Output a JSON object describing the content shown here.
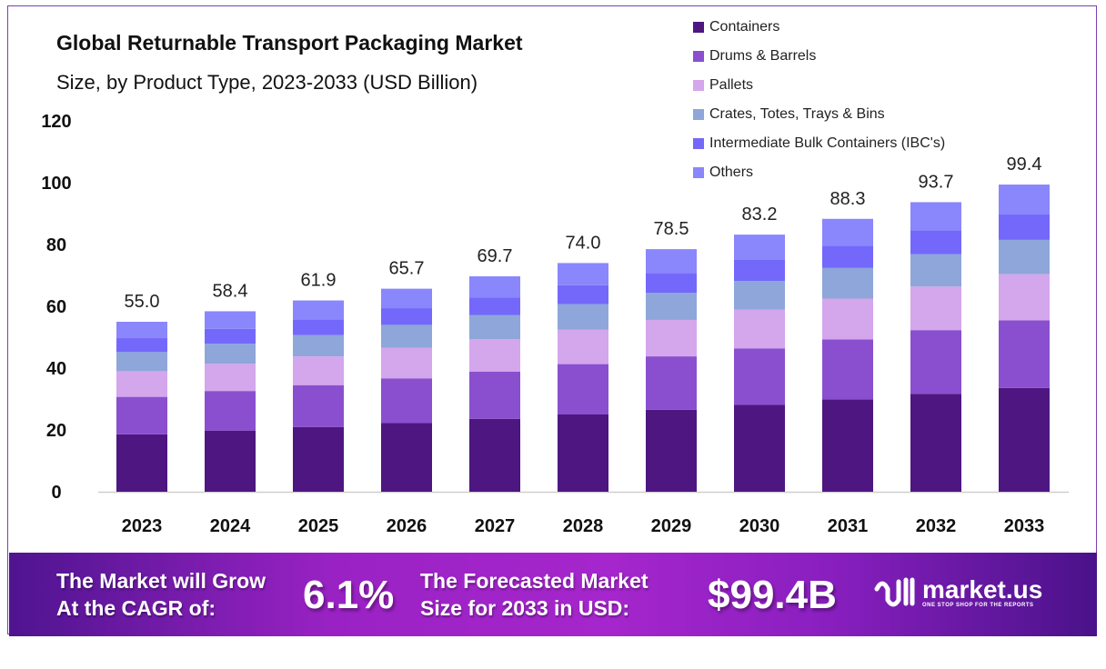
{
  "chart_data": {
    "type": "bar",
    "stacked": true,
    "title": "Global Returnable Transport Packaging Market",
    "subtitle": "Size, by Product Type, 2023-2033 (USD Billion)",
    "xlabel": "",
    "ylabel": "",
    "ylim": [
      0,
      120
    ],
    "yticks": [
      0,
      20,
      40,
      60,
      80,
      100,
      120
    ],
    "grid": false,
    "legend_position": "top-right",
    "categories": [
      "2023",
      "2024",
      "2025",
      "2026",
      "2027",
      "2028",
      "2029",
      "2030",
      "2031",
      "2032",
      "2033"
    ],
    "totals": [
      "55.0",
      "58.4",
      "61.9",
      "65.7",
      "69.7",
      "74.0",
      "78.5",
      "83.2",
      "88.3",
      "93.7",
      "99.4"
    ],
    "series": [
      {
        "name": "Containers",
        "color": "#4e1680",
        "values": [
          18.6,
          19.8,
          20.9,
          22.2,
          23.6,
          25.0,
          26.5,
          28.1,
          29.9,
          31.7,
          33.6
        ]
      },
      {
        "name": "Drums & Barrels",
        "color": "#8a4fcf",
        "values": [
          12.1,
          12.8,
          13.6,
          14.5,
          15.3,
          16.3,
          17.3,
          18.3,
          19.4,
          20.6,
          21.9
        ]
      },
      {
        "name": "Pallets",
        "color": "#d4a6ec",
        "values": [
          8.3,
          8.8,
          9.3,
          9.9,
          10.5,
          11.1,
          11.8,
          12.5,
          13.2,
          14.1,
          14.9
        ]
      },
      {
        "name": "Crates, Totes, Trays & Bins",
        "color": "#8ea6d9",
        "values": [
          6.2,
          6.5,
          6.9,
          7.4,
          7.8,
          8.3,
          8.8,
          9.3,
          9.9,
          10.5,
          11.1
        ]
      },
      {
        "name": "Intermediate Bulk Containers (IBC's)",
        "color": "#7468fb",
        "values": [
          4.5,
          4.8,
          5.1,
          5.4,
          5.7,
          6.1,
          6.4,
          6.8,
          7.2,
          7.7,
          8.2
        ]
      },
      {
        "name": "Others",
        "color": "#8a86fc",
        "values": [
          5.3,
          5.7,
          6.1,
          6.3,
          6.8,
          7.2,
          7.7,
          8.2,
          8.7,
          9.1,
          9.7
        ]
      }
    ]
  },
  "banner": {
    "cagr_text_line1": "The Market will Grow",
    "cagr_text_line2": "At the CAGR of:",
    "cagr_value": "6.1%",
    "forecast_text_line1": "The Forecasted Market",
    "forecast_text_line2": "Size for 2033 in USD:",
    "forecast_value": "$99.4B",
    "logo_name": "market.us",
    "logo_tagline": "ONE STOP SHOP FOR THE REPORTS"
  }
}
